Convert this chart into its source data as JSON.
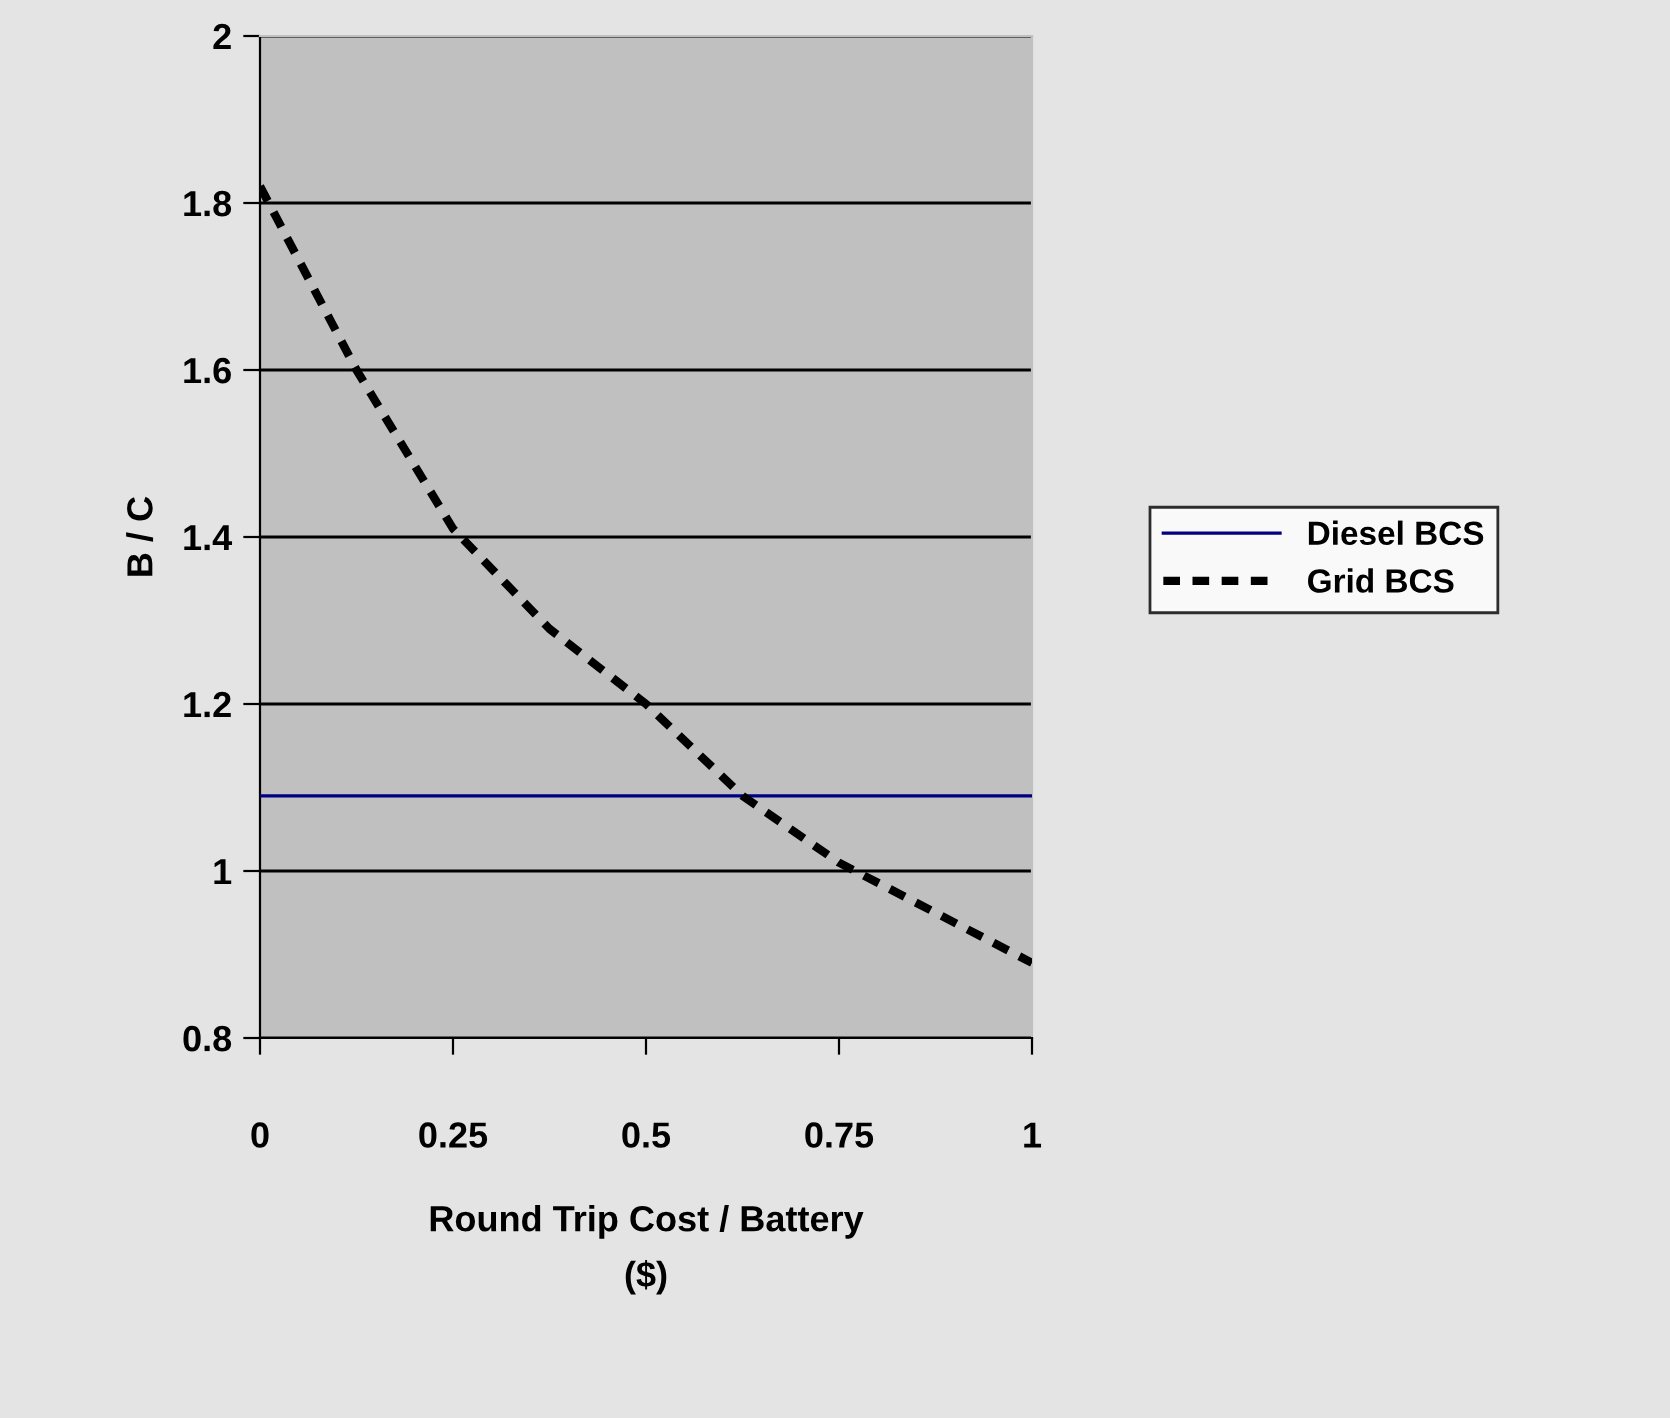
{
  "chart_data": {
    "type": "line",
    "xlabel": "Round Trip Cost / Battery\n($)",
    "ylabel": "B / C",
    "x": [
      0,
      0.125,
      0.25,
      0.375,
      0.5,
      0.625,
      0.75,
      0.875,
      1
    ],
    "series": [
      {
        "name": "Diesel BCS",
        "color": "#000080",
        "values": [
          1.09,
          1.09,
          1.09,
          1.09,
          1.09,
          1.09,
          1.09,
          1.09,
          1.09
        ],
        "line_style": "solid"
      },
      {
        "name": "Grid BCS",
        "color": "#000000",
        "values": [
          1.82,
          1.6,
          1.41,
          1.29,
          1.2,
          1.09,
          1.01,
          0.95,
          0.89
        ],
        "line_style": "dashed"
      }
    ],
    "xlim": [
      0,
      1
    ],
    "xticks": [
      0,
      0.25,
      0.5,
      0.75,
      1
    ],
    "ylim": [
      0.8,
      2
    ],
    "yticks": [
      0.8,
      1,
      1.2,
      1.4,
      1.6,
      1.8,
      2
    ],
    "grid": "y",
    "legend": "right",
    "marker": "none"
  }
}
